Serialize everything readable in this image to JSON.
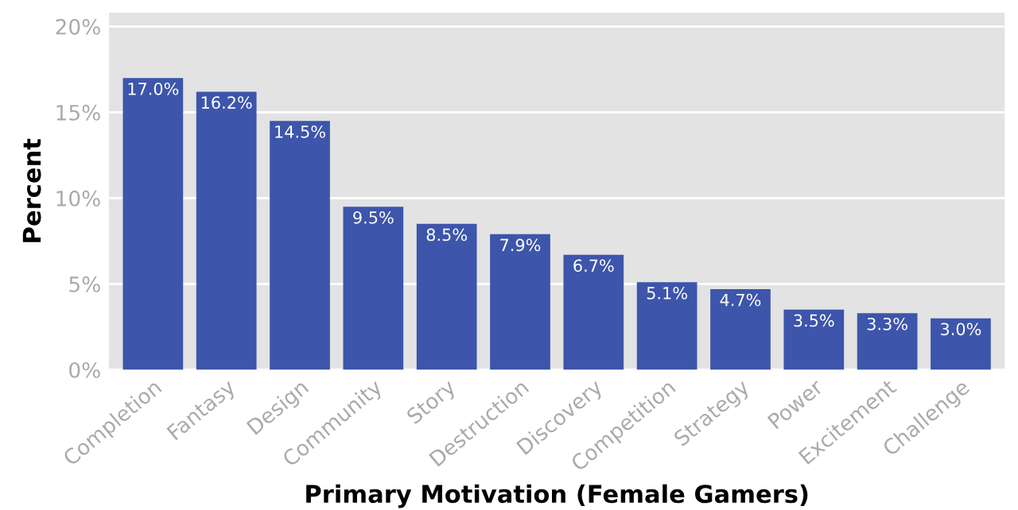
{
  "chart_data": {
    "type": "bar",
    "xlabel": "Primary Motivation (Female Gamers)",
    "ylabel": "Percent",
    "categories": [
      "Completion",
      "Fantasy",
      "Design",
      "Community",
      "Story",
      "Destruction",
      "Discovery",
      "Competition",
      "Strategy",
      "Power",
      "Excitement",
      "Challenge"
    ],
    "values": [
      17.0,
      16.2,
      14.5,
      9.5,
      8.5,
      7.9,
      6.7,
      5.1,
      4.7,
      3.5,
      3.3,
      3.0
    ],
    "value_labels": [
      "17.0%",
      "16.2%",
      "14.5%",
      "9.5%",
      "8.5%",
      "7.9%",
      "6.7%",
      "5.1%",
      "4.7%",
      "3.5%",
      "3.3%",
      "3.0%"
    ],
    "color": "#3d55ab",
    "ylim": [
      0,
      20.8
    ],
    "yticks": [
      {
        "value": 0,
        "label": "0%"
      },
      {
        "value": 5,
        "label": "5%"
      },
      {
        "value": 10,
        "label": "10%"
      },
      {
        "value": 15,
        "label": "15%"
      },
      {
        "value": 20,
        "label": "20%"
      }
    ],
    "grid": "y",
    "legend": false
  }
}
